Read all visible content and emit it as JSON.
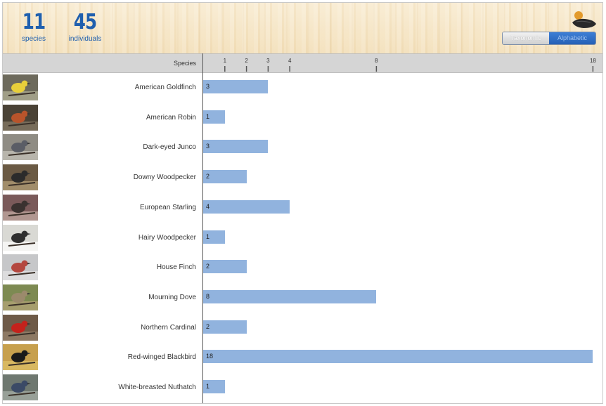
{
  "summary": {
    "species_count": "11",
    "species_label": "species",
    "individuals_count": "45",
    "individuals_label": "individuals"
  },
  "toggle": {
    "taxonomic_label": "Taxonomic",
    "alphabetic_label": "Alphabetic",
    "selected": "Alphabetic"
  },
  "colors": {
    "accent": "#1f5fae",
    "bar": "#91b3de",
    "header_band": "#d5d5d5"
  },
  "chart_data": {
    "type": "bar",
    "orientation": "horizontal",
    "title": "",
    "xlabel": "",
    "ylabel": "Species",
    "categories": [
      "American Goldfinch",
      "American Robin",
      "Dark-eyed Junco",
      "Downy Woodpecker",
      "European Starling",
      "Hairy Woodpecker",
      "House Finch",
      "Mourning Dove",
      "Northern Cardinal",
      "Red-winged Blackbird",
      "White-breasted Nuthatch"
    ],
    "values": [
      3,
      1,
      3,
      2,
      4,
      1,
      2,
      8,
      2,
      18,
      1
    ],
    "ticks": [
      1,
      2,
      3,
      4,
      8,
      18
    ],
    "xlim": [
      0,
      18
    ],
    "grid": false,
    "legend": "none"
  }
}
